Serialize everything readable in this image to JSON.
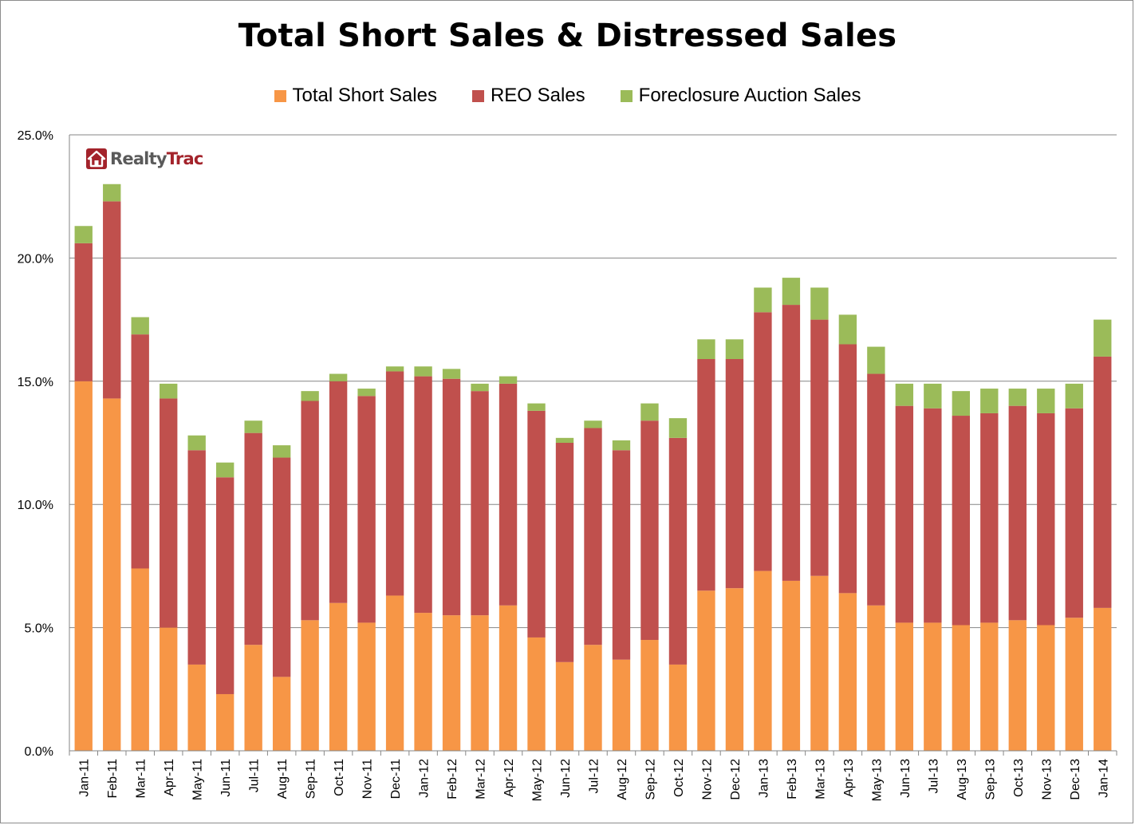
{
  "chart_data": {
    "type": "bar",
    "stacked": true,
    "title": "Total Short Sales & Distressed Sales",
    "legend_position": "top",
    "grid": true,
    "ylim": [
      0,
      25
    ],
    "yticks": [
      "0.0%",
      "5.0%",
      "10.0%",
      "15.0%",
      "20.0%",
      "25.0%"
    ],
    "categories": [
      "Jan-11",
      "Feb-11",
      "Mar-11",
      "Apr-11",
      "May-11",
      "Jun-11",
      "Jul-11",
      "Aug-11",
      "Sep-11",
      "Oct-11",
      "Nov-11",
      "Dec-11",
      "Jan-12",
      "Feb-12",
      "Mar-12",
      "Apr-12",
      "May-12",
      "Jun-12",
      "Jul-12",
      "Aug-12",
      "Sep-12",
      "Oct-12",
      "Nov-12",
      "Dec-12",
      "Jan-13",
      "Feb-13",
      "Mar-13",
      "Apr-13",
      "May-13",
      "Jun-13",
      "Jul-13",
      "Aug-13",
      "Sep-13",
      "Oct-13",
      "Nov-13",
      "Dec-13",
      "Jan-14"
    ],
    "series": [
      {
        "name": "Total Short Sales",
        "color": "#f79646",
        "values": [
          15.0,
          14.3,
          7.4,
          5.0,
          3.5,
          2.3,
          4.3,
          3.0,
          5.3,
          6.0,
          5.2,
          6.3,
          5.6,
          5.5,
          5.5,
          5.9,
          4.6,
          3.6,
          4.3,
          3.7,
          4.5,
          3.5,
          6.5,
          6.6,
          7.3,
          6.9,
          7.1,
          6.4,
          5.9,
          5.2,
          5.2,
          5.1,
          5.2,
          5.3,
          5.1,
          5.4,
          5.8
        ]
      },
      {
        "name": "REO Sales",
        "color": "#c0504d",
        "values": [
          5.6,
          8.0,
          9.5,
          9.3,
          8.7,
          8.8,
          8.6,
          8.9,
          8.9,
          9.0,
          9.2,
          9.1,
          9.6,
          9.6,
          9.1,
          9.0,
          9.2,
          8.9,
          8.8,
          8.5,
          8.9,
          9.2,
          9.4,
          9.3,
          10.5,
          11.2,
          10.4,
          10.1,
          9.4,
          8.8,
          8.7,
          8.5,
          8.5,
          8.7,
          8.6,
          8.5,
          10.2
        ]
      },
      {
        "name": "Foreclosure Auction Sales",
        "color": "#9bbb59",
        "values": [
          0.7,
          0.7,
          0.7,
          0.6,
          0.6,
          0.6,
          0.5,
          0.5,
          0.4,
          0.3,
          0.3,
          0.2,
          0.4,
          0.4,
          0.3,
          0.3,
          0.3,
          0.2,
          0.3,
          0.4,
          0.7,
          0.8,
          0.8,
          0.8,
          1.0,
          1.1,
          1.3,
          1.2,
          1.1,
          0.9,
          1.0,
          1.0,
          1.0,
          0.7,
          1.0,
          1.0,
          1.5
        ]
      }
    ]
  },
  "logo": {
    "text_part1": "Realty",
    "text_part2": "Trac"
  }
}
